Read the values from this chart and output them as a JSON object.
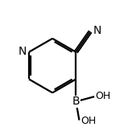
{
  "bg_color": "#ffffff",
  "line_color": "#000000",
  "line_width": 1.6,
  "font_size": 9,
  "fig_width": 1.64,
  "fig_height": 1.58,
  "dpi": 100,
  "N_label": "N",
  "B_label": "B",
  "OH_label1": "OH",
  "OH_label2": "OH",
  "CN_N_label": "N"
}
